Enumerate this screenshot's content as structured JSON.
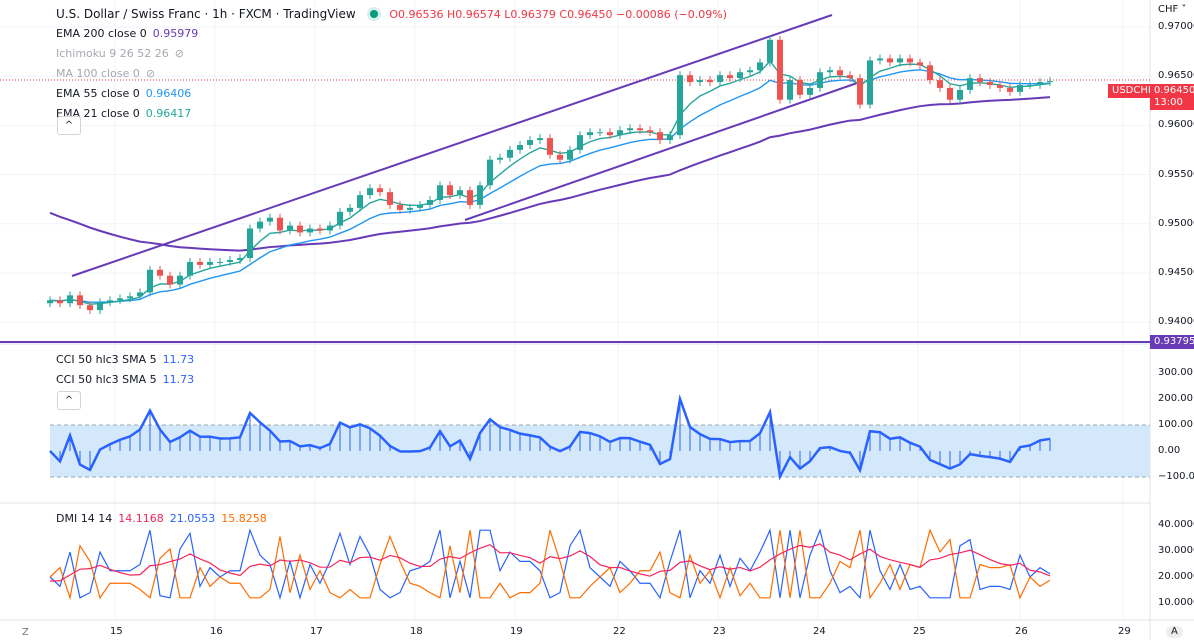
{
  "header": {
    "title": "U.S. Dollar / Swiss Franc · 1h · FXCM · TradingView",
    "ohlc": "O0.96536 H0.96574 L0.96379 C0.96450 −0.00086 (−0.09%)"
  },
  "indicators": [
    {
      "label": "EMA 200 close 0",
      "value": "0.95979",
      "color": "#673ab7"
    },
    {
      "label": "Ichimoku 9 26 52 26",
      "value": "",
      "hidden": true
    },
    {
      "label": "MA 100 close 0",
      "value": "",
      "hidden": true
    },
    {
      "label": "EMA 55 close 0",
      "value": "0.96406",
      "color": "#2196f3"
    },
    {
      "label": "EMA 21 close 0",
      "value": "0.96417",
      "color": "#26a69a"
    }
  ],
  "cci": {
    "label1": "CCI 50 hlc3 SMA 5",
    "value1": "11.73",
    "label2": "CCI 50 hlc3 SMA 5",
    "value2": "11.73"
  },
  "dmi": {
    "label": "DMI 14 14",
    "plus": "14.1168",
    "minus": "21.0553",
    "adx": "15.8258"
  },
  "collapse": "^",
  "price_axis": {
    "currency": "CHF ˅",
    "ticks": [
      "0.97000",
      "0.96500",
      "0.96000",
      "0.95500",
      "0.95000",
      "0.94500",
      "0.94000"
    ],
    "symbol_tag": "USDCHF",
    "last": "0.96450",
    "countdown": "13:00",
    "hline": "0.93795"
  },
  "cci_axis": [
    "300.00",
    "200.00",
    "100.00",
    "0.00",
    "−100.00"
  ],
  "dmi_axis": [
    "40.0000",
    "30.0000",
    "20.0000",
    "10.0000"
  ],
  "time_axis": [
    "15",
    "16",
    "17",
    "18",
    "19",
    "22",
    "23",
    "24",
    "25",
    "26",
    "29"
  ],
  "corner_left": "Z",
  "corner_right": "A",
  "chart_data": {
    "type": "candlestick",
    "title": "USDCHF 1h",
    "closes": [
      0.9422,
      0.9419,
      0.9427,
      0.9417,
      0.9412,
      0.942,
      0.9422,
      0.9424,
      0.9426,
      0.943,
      0.9453,
      0.9447,
      0.9438,
      0.9447,
      0.9461,
      0.9458,
      0.9461,
      0.9461,
      0.9463,
      0.9465,
      0.9495,
      0.9502,
      0.9506,
      0.9493,
      0.9498,
      0.9491,
      0.9495,
      0.9493,
      0.9498,
      0.9512,
      0.9516,
      0.9529,
      0.9536,
      0.9532,
      0.9519,
      0.9514,
      0.9516,
      0.9519,
      0.9524,
      0.9539,
      0.9529,
      0.9534,
      0.9519,
      0.9539,
      0.9565,
      0.9567,
      0.9575,
      0.958,
      0.9585,
      0.9587,
      0.957,
      0.9565,
      0.9575,
      0.959,
      0.9593,
      0.9593,
      0.959,
      0.9595,
      0.9597,
      0.9595,
      0.9593,
      0.9585,
      0.959,
      0.9651,
      0.9644,
      0.9646,
      0.9644,
      0.9651,
      0.9648,
      0.9654,
      0.9656,
      0.9664,
      0.9687,
      0.9626,
      0.9646,
      0.9631,
      0.9638,
      0.9654,
      0.9656,
      0.9651,
      0.9648,
      0.9621,
      0.9666,
      0.9668,
      0.9664,
      0.9668,
      0.9664,
      0.9661,
      0.9646,
      0.9638,
      0.9626,
      0.9636,
      0.9648,
      0.9644,
      0.9641,
      0.9638,
      0.9634,
      0.9641,
      0.9641,
      0.9644,
      0.9645
    ],
    "ylim": [
      0.9365,
      0.9727
    ],
    "hline": 0.93795,
    "colors": {
      "up": "#26a69a",
      "down": "#ef5350",
      "ema200": "#673ab7",
      "ema55": "#2196f3",
      "ema21": "#26a69a",
      "cci": "#2962ff",
      "plusdi": "#2962ff",
      "minusdi": "#ff6d00",
      "adx": "#f7245b"
    }
  }
}
